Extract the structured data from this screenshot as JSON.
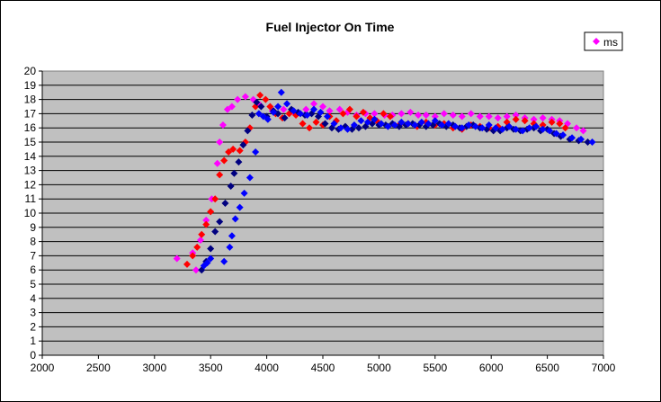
{
  "chart_data": {
    "type": "scatter",
    "title": "Fuel Injector On Time",
    "xlabel": "",
    "ylabel": "",
    "xlim": [
      2000,
      7000
    ],
    "ylim": [
      0,
      20
    ],
    "xticks": [
      2000,
      2500,
      3000,
      3500,
      4000,
      4500,
      5000,
      5500,
      6000,
      6500,
      7000
    ],
    "yticks": [
      0,
      1,
      2,
      3,
      4,
      5,
      6,
      7,
      8,
      9,
      10,
      11,
      12,
      13,
      14,
      15,
      16,
      17,
      18,
      19,
      20
    ],
    "grid": "horizontal",
    "plot_background": "#c0c0c0",
    "marker": "diamond",
    "legend": {
      "position": "top-right",
      "entries": [
        {
          "label": "ms",
          "color": "#ff00ff"
        }
      ]
    },
    "series": [
      {
        "color": "#ff00ff",
        "points": [
          [
            3200,
            6.8
          ],
          [
            3340,
            7.2
          ],
          [
            3370,
            6.0
          ],
          [
            3410,
            8.1
          ],
          [
            3460,
            9.5
          ],
          [
            3510,
            11.0
          ],
          [
            3560,
            13.5
          ],
          [
            3580,
            15.0
          ],
          [
            3610,
            16.2
          ],
          [
            3650,
            17.3
          ],
          [
            3690,
            17.5
          ],
          [
            3740,
            18.0
          ],
          [
            3810,
            18.2
          ],
          [
            3880,
            18.0
          ],
          [
            3940,
            17.6
          ],
          [
            4050,
            17.2
          ],
          [
            4150,
            17.3
          ],
          [
            4250,
            17.0
          ],
          [
            4350,
            17.3
          ],
          [
            4420,
            17.7
          ],
          [
            4500,
            17.5
          ],
          [
            4560,
            17.2
          ],
          [
            4650,
            17.3
          ],
          [
            4720,
            17.1
          ],
          [
            4800,
            16.9
          ],
          [
            4880,
            17.0
          ],
          [
            4960,
            17.0
          ],
          [
            5050,
            16.9
          ],
          [
            5120,
            16.9
          ],
          [
            5200,
            17.0
          ],
          [
            5280,
            17.1
          ],
          [
            5350,
            16.9
          ],
          [
            5420,
            16.9
          ],
          [
            5500,
            16.8
          ],
          [
            5580,
            17.0
          ],
          [
            5660,
            16.9
          ],
          [
            5740,
            16.8
          ],
          [
            5820,
            17.0
          ],
          [
            5900,
            16.8
          ],
          [
            5980,
            16.8
          ],
          [
            6060,
            16.7
          ],
          [
            6140,
            16.8
          ],
          [
            6220,
            16.9
          ],
          [
            6300,
            16.7
          ],
          [
            6380,
            16.6
          ],
          [
            6460,
            16.7
          ],
          [
            6540,
            16.6
          ],
          [
            6610,
            16.5
          ],
          [
            6680,
            16.3
          ],
          [
            6760,
            16.0
          ],
          [
            6820,
            15.8
          ]
        ]
      },
      {
        "color": "#ff0000",
        "points": [
          [
            3290,
            6.4
          ],
          [
            3340,
            7.0
          ],
          [
            3380,
            7.6
          ],
          [
            3420,
            8.5
          ],
          [
            3460,
            9.2
          ],
          [
            3500,
            10.1
          ],
          [
            3540,
            11.0
          ],
          [
            3580,
            12.7
          ],
          [
            3620,
            13.7
          ],
          [
            3660,
            14.3
          ],
          [
            3700,
            14.5
          ],
          [
            3760,
            14.4
          ],
          [
            3810,
            15.0
          ],
          [
            3850,
            16.0
          ],
          [
            3900,
            17.5
          ],
          [
            3940,
            18.3
          ],
          [
            3990,
            18.0
          ],
          [
            4030,
            17.5
          ],
          [
            4080,
            17.0
          ],
          [
            4140,
            16.7
          ],
          [
            4200,
            17.0
          ],
          [
            4260,
            16.9
          ],
          [
            4320,
            16.3
          ],
          [
            4380,
            16.0
          ],
          [
            4440,
            16.4
          ],
          [
            4500,
            16.2
          ],
          [
            4560,
            16.8
          ],
          [
            4620,
            16.5
          ],
          [
            4680,
            17.0
          ],
          [
            4740,
            17.3
          ],
          [
            4800,
            16.8
          ],
          [
            4860,
            17.1
          ],
          [
            4920,
            16.7
          ],
          [
            4980,
            16.5
          ],
          [
            5040,
            17.0
          ],
          [
            5100,
            16.8
          ],
          [
            5180,
            16.2
          ],
          [
            5260,
            16.3
          ],
          [
            5340,
            16.1
          ],
          [
            5420,
            16.4
          ],
          [
            5500,
            16.2
          ],
          [
            5580,
            16.3
          ],
          [
            5660,
            16.0
          ],
          [
            5740,
            15.9
          ],
          [
            5820,
            16.2
          ],
          [
            5900,
            16.1
          ],
          [
            5980,
            16.0
          ],
          [
            6060,
            16.1
          ],
          [
            6140,
            16.4
          ],
          [
            6220,
            16.6
          ],
          [
            6300,
            16.5
          ],
          [
            6380,
            16.3
          ],
          [
            6460,
            16.2
          ],
          [
            6540,
            16.4
          ],
          [
            6610,
            16.3
          ],
          [
            6660,
            16.0
          ]
        ]
      },
      {
        "color": "#000080",
        "points": [
          [
            3420,
            6.0
          ],
          [
            3460,
            6.6
          ],
          [
            3500,
            7.5
          ],
          [
            3540,
            8.7
          ],
          [
            3580,
            9.4
          ],
          [
            3630,
            10.7
          ],
          [
            3680,
            11.9
          ],
          [
            3710,
            12.8
          ],
          [
            3750,
            13.6
          ],
          [
            3790,
            14.8
          ],
          [
            3830,
            15.8
          ],
          [
            3870,
            16.9
          ],
          [
            3910,
            17.8
          ],
          [
            3950,
            17.5
          ],
          [
            4000,
            16.8
          ],
          [
            4060,
            17.2
          ],
          [
            4100,
            17.0
          ],
          [
            4160,
            16.7
          ],
          [
            4220,
            17.3
          ],
          [
            4280,
            17.1
          ],
          [
            4340,
            16.9
          ],
          [
            4400,
            17.0
          ],
          [
            4460,
            16.8
          ],
          [
            4520,
            16.3
          ],
          [
            4580,
            16.0
          ],
          [
            4640,
            15.9
          ],
          [
            4700,
            16.1
          ],
          [
            4760,
            15.9
          ],
          [
            4820,
            16.0
          ],
          [
            4880,
            16.1
          ],
          [
            4940,
            16.3
          ],
          [
            5000,
            16.2
          ],
          [
            5060,
            16.2
          ],
          [
            5120,
            16.3
          ],
          [
            5180,
            16.1
          ],
          [
            5240,
            16.2
          ],
          [
            5300,
            16.3
          ],
          [
            5360,
            16.2
          ],
          [
            5420,
            16.1
          ],
          [
            5480,
            16.2
          ],
          [
            5540,
            16.3
          ],
          [
            5600,
            16.1
          ],
          [
            5660,
            16.2
          ],
          [
            5720,
            16.0
          ],
          [
            5780,
            16.1
          ],
          [
            5840,
            16.2
          ],
          [
            5900,
            16.0
          ],
          [
            5960,
            15.9
          ],
          [
            6020,
            15.8
          ],
          [
            6080,
            15.8
          ],
          [
            6140,
            16.0
          ],
          [
            6200,
            15.9
          ],
          [
            6260,
            15.8
          ],
          [
            6320,
            15.9
          ],
          [
            6380,
            16.0
          ],
          [
            6440,
            15.8
          ],
          [
            6500,
            15.9
          ],
          [
            6560,
            15.6
          ],
          [
            6620,
            15.4
          ],
          [
            6700,
            15.2
          ],
          [
            6780,
            15.1
          ],
          [
            6860,
            15.0
          ]
        ]
      },
      {
        "color": "#0000ff",
        "points": [
          [
            3440,
            6.3
          ],
          [
            3470,
            6.5
          ],
          [
            3500,
            6.8
          ],
          [
            3620,
            6.6
          ],
          [
            3670,
            7.6
          ],
          [
            3690,
            8.4
          ],
          [
            3720,
            9.6
          ],
          [
            3760,
            10.4
          ],
          [
            3800,
            11.4
          ],
          [
            3850,
            12.5
          ],
          [
            3900,
            14.3
          ],
          [
            3930,
            17.0
          ],
          [
            3970,
            16.8
          ],
          [
            4010,
            16.6
          ],
          [
            4060,
            17.1
          ],
          [
            4100,
            17.5
          ],
          [
            4130,
            18.5
          ],
          [
            4180,
            17.7
          ],
          [
            4240,
            17.2
          ],
          [
            4300,
            17.0
          ],
          [
            4360,
            16.9
          ],
          [
            4420,
            17.3
          ],
          [
            4480,
            17.1
          ],
          [
            4540,
            16.8
          ],
          [
            4600,
            16.3
          ],
          [
            4660,
            16.0
          ],
          [
            4720,
            15.9
          ],
          [
            4780,
            16.2
          ],
          [
            4840,
            16.5
          ],
          [
            4900,
            16.4
          ],
          [
            4960,
            16.6
          ],
          [
            5020,
            16.3
          ],
          [
            5080,
            16.1
          ],
          [
            5140,
            16.2
          ],
          [
            5200,
            16.4
          ],
          [
            5260,
            16.3
          ],
          [
            5320,
            16.2
          ],
          [
            5380,
            16.4
          ],
          [
            5440,
            16.3
          ],
          [
            5500,
            16.5
          ],
          [
            5560,
            16.2
          ],
          [
            5620,
            16.3
          ],
          [
            5680,
            16.1
          ],
          [
            5740,
            16.0
          ],
          [
            5800,
            16.2
          ],
          [
            5860,
            16.1
          ],
          [
            5920,
            16.0
          ],
          [
            5980,
            16.2
          ],
          [
            6040,
            16.0
          ],
          [
            6100,
            15.9
          ],
          [
            6160,
            16.1
          ],
          [
            6220,
            15.9
          ],
          [
            6280,
            15.8
          ],
          [
            6340,
            16.0
          ],
          [
            6400,
            16.1
          ],
          [
            6460,
            15.9
          ],
          [
            6520,
            15.8
          ],
          [
            6580,
            15.6
          ],
          [
            6640,
            15.5
          ],
          [
            6720,
            15.3
          ],
          [
            6800,
            15.2
          ],
          [
            6900,
            15.0
          ]
        ]
      }
    ]
  }
}
